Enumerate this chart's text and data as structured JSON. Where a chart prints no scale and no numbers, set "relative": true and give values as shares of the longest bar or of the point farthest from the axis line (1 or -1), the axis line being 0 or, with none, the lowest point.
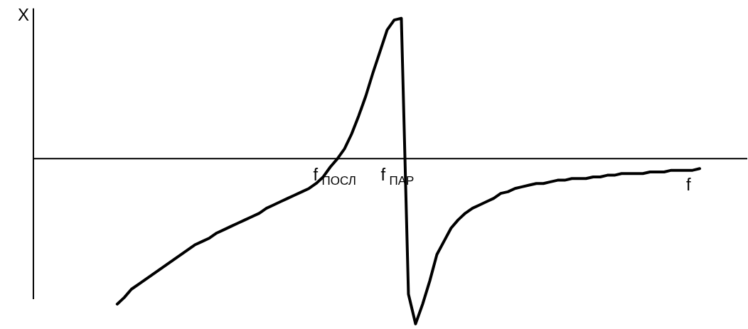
{
  "chart_data": {
    "type": "line",
    "relative": true,
    "xlabel": "f",
    "ylabel": "X",
    "color": "#000000",
    "marker": "none",
    "annotations": [
      "f$_{ПОСЛ}$",
      "f$_{ПАР}$"
    ],
    "categories": [
      null,
      null,
      null,
      null,
      null,
      null,
      null,
      null,
      null,
      null,
      null,
      null,
      null,
      null,
      null,
      null,
      null,
      null,
      null,
      null,
      null,
      null,
      null,
      null,
      null,
      null,
      null,
      null,
      null,
      null,
      null,
      null,
      null,
      null,
      null,
      null,
      null,
      null,
      null,
      null,
      null,
      null,
      null,
      null,
      null,
      null,
      null,
      null,
      null,
      null,
      null,
      null,
      null,
      null,
      null,
      null,
      null,
      null,
      null,
      null,
      null,
      null,
      null,
      null,
      null,
      null,
      null,
      null,
      null,
      null,
      null,
      null,
      null,
      null,
      null,
      null,
      null,
      null,
      null,
      null,
      null,
      null,
      null
    ],
    "values": [
      -0.88,
      -0.84,
      -0.79,
      -0.76,
      -0.73,
      -0.7,
      -0.67,
      -0.64,
      -0.61,
      -0.58,
      -0.55,
      -0.52,
      -0.5,
      -0.48,
      -0.45,
      -0.43,
      -0.41,
      -0.39,
      -0.37,
      -0.35,
      -0.33,
      -0.3,
      -0.28,
      -0.26,
      -0.24,
      -0.22,
      -0.2,
      -0.18,
      -0.15,
      -0.11,
      -0.05,
      0.0,
      0.06,
      0.15,
      0.26,
      0.38,
      0.52,
      0.65,
      0.78,
      0.84,
      0.85,
      -0.82,
      -1,
      -0.88,
      -0.74,
      -0.58,
      -0.5,
      -0.42,
      -0.37,
      -0.33,
      -0.3,
      -0.28,
      -0.26,
      -0.24,
      -0.21,
      -0.2,
      -0.18,
      -0.17,
      -0.16,
      -0.15,
      -0.15,
      -0.14,
      -0.13,
      -0.13,
      -0.12,
      -0.12,
      -0.12,
      -0.11,
      -0.11,
      -0.1,
      -0.1,
      -0.09,
      -0.09,
      -0.09,
      -0.09,
      -0.08,
      -0.08,
      -0.08,
      -0.07,
      -0.07,
      -0.07,
      -0.07,
      -0.06
    ]
  }
}
